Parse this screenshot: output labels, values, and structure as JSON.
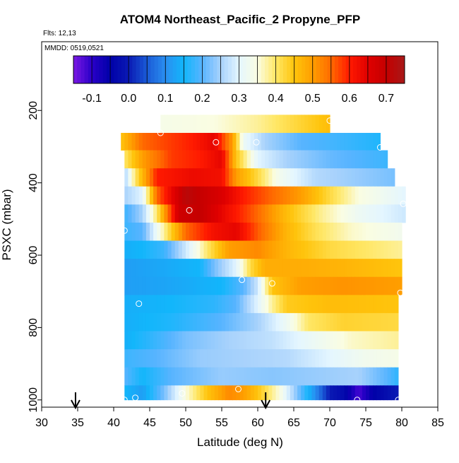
{
  "header": {
    "title": "ATOM4 Northeast_Pacific_2 Propyne_PFP",
    "flights": "Flts: 12,13",
    "mmdd": "MMDD: 0519,0521"
  },
  "chart_data": {
    "type": "heatmap",
    "title": "ATOM4 Northeast_Pacific_2 Propyne_PFP",
    "xlabel": "Latitude (deg N)",
    "ylabel": "PSXC (mbar)",
    "xlim": [
      30,
      85
    ],
    "ylim": [
      1020,
      10
    ],
    "y_inverted": true,
    "x_ticks": [
      30,
      35,
      40,
      45,
      50,
      55,
      60,
      65,
      70,
      75,
      80,
      85
    ],
    "y_ticks": [
      200,
      400,
      600,
      800,
      1000
    ],
    "colorbar": {
      "range": [
        -0.15,
        0.75
      ],
      "ticks": [
        -0.1,
        0.0,
        0.1,
        0.2,
        0.3,
        0.4,
        0.5,
        0.6,
        0.7
      ],
      "tick_labels": [
        "-0.1",
        "0.0",
        "0.1",
        "0.2",
        "0.3",
        "0.4",
        "0.5",
        "0.6",
        "0.7"
      ],
      "stops": [
        {
          "v": -0.15,
          "c": "#7b18e3"
        },
        {
          "v": -0.1,
          "c": "#2a00c8"
        },
        {
          "v": -0.05,
          "c": "#0000a8"
        },
        {
          "v": 0.0,
          "c": "#0a1ab4"
        },
        {
          "v": 0.05,
          "c": "#1a5ad6"
        },
        {
          "v": 0.1,
          "c": "#2a8ef0"
        },
        {
          "v": 0.15,
          "c": "#12b6fb"
        },
        {
          "v": 0.2,
          "c": "#58b4ff"
        },
        {
          "v": 0.25,
          "c": "#a8d2fc"
        },
        {
          "v": 0.3,
          "c": "#e4f6ff"
        },
        {
          "v": 0.35,
          "c": "#fafde2"
        },
        {
          "v": 0.4,
          "c": "#ffe766"
        },
        {
          "v": 0.45,
          "c": "#ffc40c"
        },
        {
          "v": 0.5,
          "c": "#ff9e00"
        },
        {
          "v": 0.55,
          "c": "#ff6a00"
        },
        {
          "v": 0.6,
          "c": "#ff1a00"
        },
        {
          "v": 0.65,
          "c": "#e00000"
        },
        {
          "v": 0.7,
          "c": "#c40000"
        },
        {
          "v": 0.75,
          "c": "#a81818"
        }
      ]
    },
    "bands": [
      {
        "p_top": 212,
        "p_bot": 262,
        "lat_start": 46.5,
        "lat_end": 70.0,
        "profile": [
          [
            46.5,
            0.34
          ],
          [
            54,
            0.35
          ],
          [
            60,
            0.38
          ],
          [
            65,
            0.42
          ],
          [
            70,
            0.46
          ]
        ]
      },
      {
        "p_top": 262,
        "p_bot": 310,
        "lat_start": 41.0,
        "lat_end": 77.0,
        "profile": [
          [
            41,
            0.45
          ],
          [
            44,
            0.55
          ],
          [
            48,
            0.58
          ],
          [
            51,
            0.6
          ],
          [
            54,
            0.64
          ],
          [
            56.5,
            0.5
          ],
          [
            58,
            0.32
          ],
          [
            61,
            0.25
          ],
          [
            66,
            0.2
          ],
          [
            72,
            0.18
          ],
          [
            77,
            0.16
          ]
        ]
      },
      {
        "p_top": 310,
        "p_bot": 360,
        "lat_start": 41.5,
        "lat_end": 78.0,
        "profile": [
          [
            41.5,
            0.4
          ],
          [
            44,
            0.5
          ],
          [
            48,
            0.58
          ],
          [
            52,
            0.6
          ],
          [
            55,
            0.64
          ],
          [
            57,
            0.45
          ],
          [
            60,
            0.3
          ],
          [
            64,
            0.25
          ],
          [
            70,
            0.21
          ],
          [
            78,
            0.18
          ]
        ]
      },
      {
        "p_top": 360,
        "p_bot": 410,
        "lat_start": 41.5,
        "lat_end": 79.0,
        "profile": [
          [
            41.5,
            0.25
          ],
          [
            43,
            0.4
          ],
          [
            46,
            0.6
          ],
          [
            51,
            0.63
          ],
          [
            55,
            0.62
          ],
          [
            57,
            0.5
          ],
          [
            60,
            0.42
          ],
          [
            63,
            0.33
          ],
          [
            68,
            0.26
          ],
          [
            79,
            0.22
          ]
        ]
      },
      {
        "p_top": 410,
        "p_bot": 460,
        "lat_start": 41.5,
        "lat_end": 80.5,
        "profile": [
          [
            41.5,
            0.25
          ],
          [
            44,
            0.3
          ],
          [
            46,
            0.55
          ],
          [
            50,
            0.72
          ],
          [
            55,
            0.66
          ],
          [
            58,
            0.6
          ],
          [
            62,
            0.55
          ],
          [
            66,
            0.5
          ],
          [
            70,
            0.42
          ],
          [
            74,
            0.35
          ],
          [
            80.5,
            0.3
          ]
        ]
      },
      {
        "p_top": 460,
        "p_bot": 510,
        "lat_start": 41.5,
        "lat_end": 80.5,
        "profile": [
          [
            41.5,
            0.18
          ],
          [
            44,
            0.25
          ],
          [
            46,
            0.4
          ],
          [
            49,
            0.68
          ],
          [
            52,
            0.7
          ],
          [
            56,
            0.62
          ],
          [
            60,
            0.55
          ],
          [
            64,
            0.46
          ],
          [
            69,
            0.38
          ],
          [
            74,
            0.32
          ],
          [
            80.5,
            0.28
          ]
        ]
      },
      {
        "p_top": 510,
        "p_bot": 560,
        "lat_start": 41.5,
        "lat_end": 80.0,
        "profile": [
          [
            41.5,
            0.18
          ],
          [
            44,
            0.2
          ],
          [
            47,
            0.38
          ],
          [
            50,
            0.55
          ],
          [
            54,
            0.62
          ],
          [
            57,
            0.64
          ],
          [
            60,
            0.56
          ],
          [
            64,
            0.47
          ],
          [
            68,
            0.41
          ],
          [
            73,
            0.36
          ],
          [
            80,
            0.33
          ]
        ]
      },
      {
        "p_top": 560,
        "p_bot": 610,
        "lat_start": 41.5,
        "lat_end": 80.0,
        "profile": [
          [
            41.5,
            0.14
          ],
          [
            44,
            0.15
          ],
          [
            47,
            0.18
          ],
          [
            50,
            0.28
          ],
          [
            53,
            0.4
          ],
          [
            56,
            0.5
          ],
          [
            60,
            0.52
          ],
          [
            64,
            0.47
          ],
          [
            70,
            0.42
          ],
          [
            80,
            0.38
          ]
        ]
      },
      {
        "p_top": 610,
        "p_bot": 660,
        "lat_start": 41.5,
        "lat_end": 80.0,
        "profile": [
          [
            41.5,
            0.12
          ],
          [
            46,
            0.13
          ],
          [
            52,
            0.15
          ],
          [
            54,
            0.22
          ],
          [
            57,
            0.3
          ],
          [
            59,
            0.42
          ],
          [
            61,
            0.48
          ],
          [
            66,
            0.48
          ],
          [
            72,
            0.47
          ],
          [
            80,
            0.45
          ]
        ]
      },
      {
        "p_top": 660,
        "p_bot": 710,
        "lat_start": 41.5,
        "lat_end": 80.0,
        "profile": [
          [
            41.5,
            0.12
          ],
          [
            48,
            0.13
          ],
          [
            55,
            0.15
          ],
          [
            58,
            0.2
          ],
          [
            60,
            0.28
          ],
          [
            62,
            0.45
          ],
          [
            66,
            0.5
          ],
          [
            72,
            0.51
          ],
          [
            80,
            0.5
          ]
        ]
      },
      {
        "p_top": 710,
        "p_bot": 760,
        "lat_start": 41.5,
        "lat_end": 79.5,
        "profile": [
          [
            41.5,
            0.14
          ],
          [
            48,
            0.15
          ],
          [
            54,
            0.17
          ],
          [
            57,
            0.2
          ],
          [
            60,
            0.3
          ],
          [
            62,
            0.38
          ],
          [
            64,
            0.44
          ],
          [
            70,
            0.46
          ],
          [
            79.5,
            0.45
          ]
        ]
      },
      {
        "p_top": 760,
        "p_bot": 810,
        "lat_start": 41.5,
        "lat_end": 79.5,
        "profile": [
          [
            41.5,
            0.14
          ],
          [
            48,
            0.16
          ],
          [
            55,
            0.2
          ],
          [
            60,
            0.25
          ],
          [
            64,
            0.32
          ],
          [
            67,
            0.4
          ],
          [
            72,
            0.43
          ],
          [
            79.5,
            0.42
          ]
        ]
      },
      {
        "p_top": 810,
        "p_bot": 860,
        "lat_start": 41.5,
        "lat_end": 79.5,
        "profile": [
          [
            41.5,
            0.14
          ],
          [
            45,
            0.17
          ],
          [
            50,
            0.22
          ],
          [
            56,
            0.25
          ],
          [
            62,
            0.27
          ],
          [
            68,
            0.32
          ],
          [
            73,
            0.36
          ],
          [
            79.5,
            0.38
          ]
        ]
      },
      {
        "p_top": 860,
        "p_bot": 910,
        "lat_start": 41.5,
        "lat_end": 79.5,
        "profile": [
          [
            41.5,
            0.18
          ],
          [
            46,
            0.2
          ],
          [
            52,
            0.24
          ],
          [
            58,
            0.25
          ],
          [
            64,
            0.26
          ],
          [
            70,
            0.3
          ],
          [
            75,
            0.33
          ],
          [
            79.5,
            0.34
          ]
        ]
      },
      {
        "p_top": 910,
        "p_bot": 960,
        "lat_start": 41.5,
        "lat_end": 79.5,
        "profile": [
          [
            41.5,
            0.2
          ],
          [
            44,
            0.15
          ],
          [
            48,
            0.2
          ],
          [
            55,
            0.24
          ],
          [
            62,
            0.23
          ],
          [
            68,
            0.24
          ],
          [
            74,
            0.25
          ],
          [
            78,
            0.2
          ],
          [
            79.5,
            0.17
          ]
        ]
      },
      {
        "p_top": 960,
        "p_bot": 1000,
        "lat_start": 41.5,
        "lat_end": 79.5,
        "profile": [
          [
            41.5,
            0.15
          ],
          [
            44,
            0.12
          ],
          [
            47,
            0.22
          ],
          [
            50,
            0.35
          ],
          [
            53,
            0.45
          ],
          [
            56,
            0.52
          ],
          [
            58,
            0.5
          ],
          [
            60,
            0.45
          ],
          [
            63,
            0.35
          ],
          [
            67,
            0.15
          ],
          [
            70,
            0.0
          ],
          [
            72,
            -0.03
          ],
          [
            74,
            -0.12
          ],
          [
            76,
            -0.05
          ],
          [
            79.5,
            0.0
          ]
        ]
      }
    ],
    "samples": [
      {
        "lat": 46.5,
        "p": 262
      },
      {
        "lat": 70.0,
        "p": 228
      },
      {
        "lat": 54.2,
        "p": 288
      },
      {
        "lat": 59.8,
        "p": 288
      },
      {
        "lat": 77.0,
        "p": 302
      },
      {
        "lat": 50.5,
        "p": 476
      },
      {
        "lat": 80.2,
        "p": 458
      },
      {
        "lat": 41.5,
        "p": 532
      },
      {
        "lat": 57.8,
        "p": 668
      },
      {
        "lat": 62.0,
        "p": 678
      },
      {
        "lat": 43.5,
        "p": 734
      },
      {
        "lat": 79.8,
        "p": 704
      },
      {
        "lat": 57.3,
        "p": 970
      },
      {
        "lat": 49.5,
        "p": 982
      },
      {
        "lat": 43.0,
        "p": 994
      },
      {
        "lat": 41.5,
        "p": 1000
      },
      {
        "lat": 73.8,
        "p": 1000
      },
      {
        "lat": 79.5,
        "p": 1000
      }
    ],
    "arrows": [
      {
        "lat": 34.7
      },
      {
        "lat": 61.1
      }
    ]
  }
}
